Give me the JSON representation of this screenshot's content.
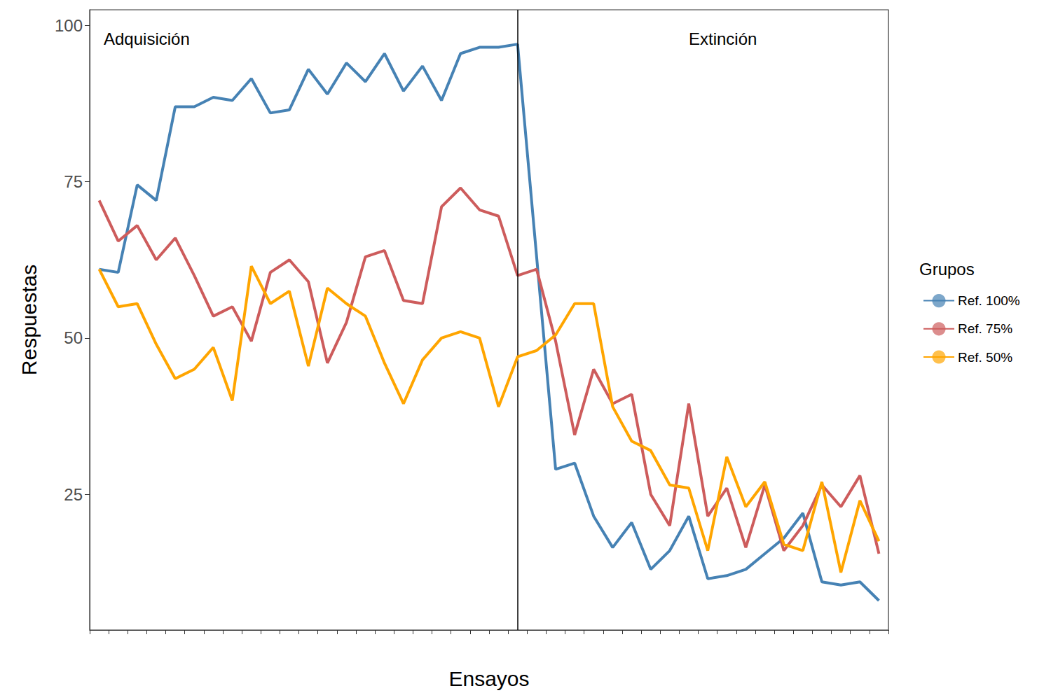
{
  "chart_data": {
    "type": "line",
    "x_label": "Ensayos",
    "y_label": "Respuestas",
    "annotations": [
      "Adquisición",
      "Extinción"
    ],
    "vline": 22,
    "legend_title": "Grupos",
    "legend": "right",
    "grid": false,
    "tick_labels": "y",
    "marker": "circle",
    "ylim": [
      3.3,
      102.5
    ],
    "yticks": [
      25,
      50,
      75,
      100
    ],
    "categories": [
      null,
      null,
      null,
      null,
      null,
      null,
      null,
      null,
      null,
      null,
      null,
      null,
      null,
      null,
      null,
      null,
      null,
      null,
      null,
      null,
      null,
      null,
      null,
      null,
      null,
      null,
      null,
      null,
      null,
      null,
      null,
      null,
      null,
      null,
      null,
      null,
      null,
      null,
      null,
      null,
      null,
      null
    ],
    "series": [
      {
        "name": "Ref. 100%",
        "color": "#4682b4",
        "values": [
          61,
          60.5,
          74.5,
          72,
          87,
          87,
          88.5,
          88,
          91.5,
          86,
          86.5,
          93,
          89,
          94,
          91,
          95.5,
          89.5,
          93.5,
          88,
          95.5,
          96.5,
          96.5,
          97,
          63,
          29,
          30,
          21.5,
          16.5,
          20.5,
          13,
          16,
          21.5,
          11.5,
          12,
          13,
          15.5,
          18,
          22,
          11,
          10.5,
          11,
          8
        ]
      },
      {
        "name": "Ref. 75%",
        "color": "#cd5c5c",
        "values": [
          72,
          65.5,
          68,
          62.5,
          66,
          60,
          53.5,
          55,
          49.5,
          60.5,
          62.5,
          59,
          46,
          52.5,
          63,
          64,
          56,
          55.5,
          71,
          74,
          70.5,
          69.5,
          60,
          61,
          49.5,
          34.5,
          45,
          39.5,
          41,
          25,
          20,
          39.5,
          21.5,
          26,
          16.5,
          26.5,
          16,
          20,
          26.5,
          23,
          28,
          15.5
        ]
      },
      {
        "name": "Ref. 50%",
        "color": "#ffa500",
        "values": [
          61,
          55,
          55.5,
          49,
          43.5,
          45,
          48.5,
          40,
          61.5,
          55.5,
          57.5,
          45.5,
          58,
          55.5,
          53.5,
          46,
          39.5,
          46.5,
          50,
          51,
          50,
          39,
          47,
          48,
          50.5,
          55.5,
          55.5,
          39,
          33.5,
          32,
          26.5,
          26,
          16,
          31,
          23,
          27,
          17,
          16,
          27,
          12.5,
          24,
          17.5
        ]
      }
    ]
  }
}
